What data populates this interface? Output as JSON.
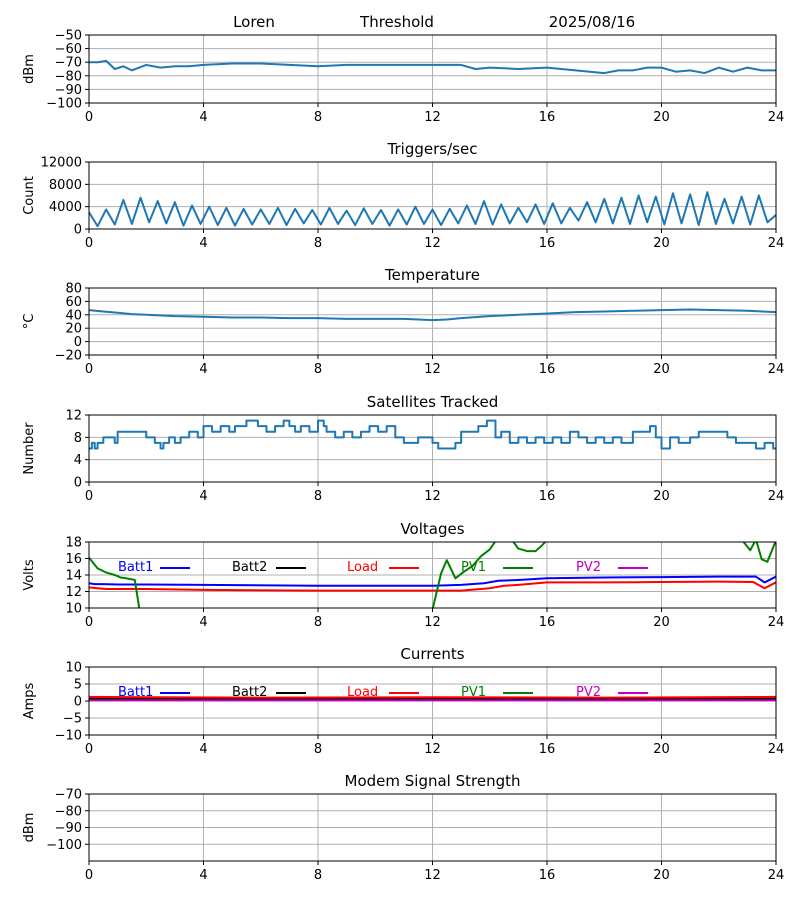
{
  "header": {
    "station": "Loren",
    "mode": "Threshold",
    "date": "2025/08/16"
  },
  "colors": {
    "series_default": "#1f77b4",
    "grid": "#b0b0b0",
    "batt1": "#0000ff",
    "batt2": "#000000",
    "load": "#ff0000",
    "pv1": "#008000",
    "pv2": "#bf00bf"
  },
  "chart_data": [
    {
      "type": "line",
      "title": "",
      "ylabel": "dBm",
      "xlim": [
        0,
        24
      ],
      "xticks": [
        0,
        4,
        8,
        12,
        16,
        20,
        24
      ],
      "ylim": [
        -100,
        -50
      ],
      "yticks": [
        -100,
        -90,
        -80,
        -70,
        -60,
        -50
      ],
      "grid": true,
      "series": [
        {
          "color": "#1f77b4",
          "x": [
            0,
            0.3,
            0.6,
            0.9,
            1.2,
            1.5,
            2,
            2.5,
            3,
            3.5,
            4,
            5,
            6,
            7,
            8,
            9,
            10,
            11,
            12,
            13,
            13.5,
            14,
            15,
            16,
            17,
            18,
            18.5,
            19,
            19.5,
            20,
            20.5,
            21,
            21.5,
            22,
            22.5,
            23,
            23.5,
            24
          ],
          "y": [
            -70,
            -70,
            -69,
            -75,
            -73,
            -76,
            -72,
            -74,
            -73,
            -73,
            -72,
            -71,
            -71,
            -72,
            -73,
            -72,
            -72,
            -72,
            -72,
            -72,
            -75,
            -74,
            -75,
            -74,
            -76,
            -78,
            -76,
            -76,
            -74,
            -74,
            -77,
            -76,
            -78,
            -74,
            -77,
            -74,
            -76,
            -76
          ]
        }
      ]
    },
    {
      "type": "line",
      "title": "Triggers/sec",
      "ylabel": "Count",
      "xlim": [
        0,
        24
      ],
      "xticks": [
        0,
        4,
        8,
        12,
        16,
        20,
        24
      ],
      "ylim": [
        0,
        12000
      ],
      "yticks": [
        0,
        4000,
        8000,
        12000
      ],
      "grid": true,
      "series": [
        {
          "color": "#1f77b4",
          "x": [
            0,
            0.3,
            0.6,
            0.9,
            1.2,
            1.5,
            1.8,
            2.1,
            2.4,
            2.7,
            3,
            3.3,
            3.6,
            3.9,
            4.2,
            4.5,
            4.8,
            5.1,
            5.4,
            5.7,
            6,
            6.3,
            6.6,
            6.9,
            7.2,
            7.5,
            7.8,
            8.1,
            8.4,
            8.7,
            9,
            9.3,
            9.6,
            9.9,
            10.2,
            10.5,
            10.8,
            11.1,
            11.4,
            11.7,
            12,
            12.3,
            12.6,
            12.9,
            13.2,
            13.5,
            13.8,
            14.1,
            14.4,
            14.7,
            15,
            15.3,
            15.6,
            15.9,
            16.2,
            16.5,
            16.8,
            17.1,
            17.4,
            17.7,
            18,
            18.3,
            18.6,
            18.9,
            19.2,
            19.5,
            19.8,
            20.1,
            20.4,
            20.7,
            21,
            21.3,
            21.6,
            21.9,
            22.2,
            22.5,
            22.8,
            23.1,
            23.4,
            23.7,
            24
          ],
          "y": [
            3000,
            500,
            3500,
            800,
            5200,
            900,
            5600,
            1200,
            5000,
            1000,
            4800,
            600,
            4200,
            900,
            4000,
            700,
            3800,
            600,
            3600,
            800,
            3500,
            900,
            3800,
            700,
            3600,
            1000,
            3400,
            800,
            3800,
            900,
            3300,
            700,
            3700,
            900,
            3400,
            600,
            3500,
            800,
            4000,
            900,
            3500,
            700,
            3600,
            1000,
            4200,
            900,
            5000,
            800,
            4400,
            1000,
            3800,
            1200,
            4400,
            900,
            4600,
            1000,
            3800,
            1500,
            4800,
            1200,
            5400,
            1000,
            5600,
            900,
            6000,
            1200,
            5800,
            800,
            6400,
            1000,
            6200,
            700,
            6600,
            900,
            5400,
            1000,
            5800,
            800,
            6000,
            1200,
            2500
          ]
        }
      ]
    },
    {
      "type": "line",
      "title": "Temperature",
      "ylabel": "°C",
      "xlim": [
        0,
        24
      ],
      "xticks": [
        0,
        4,
        8,
        12,
        16,
        20,
        24
      ],
      "ylim": [
        -20,
        80
      ],
      "yticks": [
        -20,
        0,
        20,
        40,
        60,
        80
      ],
      "grid": true,
      "series": [
        {
          "color": "#1f77b4",
          "x": [
            0,
            0.5,
            1,
            1.5,
            2,
            3,
            4,
            5,
            6,
            7,
            8,
            9,
            10,
            11,
            12,
            12.5,
            13,
            14,
            15,
            16,
            17,
            18,
            19,
            20,
            21,
            22,
            23,
            24
          ],
          "y": [
            47,
            45,
            43,
            41,
            40,
            38,
            37,
            36,
            36,
            35,
            35,
            34,
            34,
            34,
            32,
            33,
            35,
            38,
            40,
            42,
            44,
            45,
            46,
            47,
            48,
            47,
            46,
            44
          ]
        }
      ]
    },
    {
      "type": "line",
      "title": "Satellites Tracked",
      "ylabel": "Number",
      "xlim": [
        0,
        24
      ],
      "xticks": [
        0,
        4,
        8,
        12,
        16,
        20,
        24
      ],
      "ylim": [
        0,
        12
      ],
      "yticks": [
        0,
        4,
        8,
        12
      ],
      "grid": true,
      "series": [
        {
          "color": "#1f77b4",
          "step": true,
          "x": [
            0,
            0.1,
            0.2,
            0.3,
            0.5,
            0.9,
            1,
            1.5,
            2,
            2.3,
            2.5,
            2.6,
            2.8,
            3,
            3.2,
            3.5,
            3.8,
            4,
            4.3,
            4.6,
            4.9,
            5.1,
            5.5,
            5.9,
            6.2,
            6.5,
            6.8,
            7,
            7.2,
            7.4,
            7.7,
            8,
            8.2,
            8.3,
            8.6,
            8.9,
            9.2,
            9.5,
            9.8,
            10.1,
            10.4,
            10.7,
            11,
            11.5,
            12,
            12.2,
            12.4,
            12.8,
            13,
            13.3,
            13.6,
            13.9,
            14.2,
            14.4,
            14.7,
            15,
            15.3,
            15.6,
            15.9,
            16.2,
            16.5,
            16.8,
            17.1,
            17.4,
            17.7,
            18,
            18.3,
            18.6,
            19,
            19.3,
            19.6,
            19.8,
            20,
            20.3,
            20.6,
            21,
            21.3,
            21.6,
            22,
            22.3,
            22.6,
            23,
            23.3,
            23.6,
            23.9,
            24
          ],
          "y": [
            6,
            7,
            6,
            7,
            8,
            7,
            9,
            9,
            8,
            7,
            6,
            7,
            8,
            7,
            8,
            9,
            8,
            10,
            9,
            10,
            9,
            10,
            11,
            10,
            9,
            10,
            11,
            10,
            9,
            10,
            9,
            11,
            10,
            9,
            8,
            9,
            8,
            9,
            10,
            9,
            10,
            8,
            7,
            8,
            7,
            6,
            6,
            7,
            9,
            9,
            10,
            11,
            8,
            9,
            7,
            8,
            7,
            8,
            7,
            8,
            7,
            9,
            8,
            7,
            8,
            7,
            8,
            7,
            9,
            9,
            10,
            8,
            6,
            8,
            7,
            8,
            9,
            9,
            9,
            8,
            7,
            7,
            6,
            7,
            6,
            6
          ]
        }
      ]
    },
    {
      "type": "line",
      "title": "Voltages",
      "ylabel": "Volts",
      "xlim": [
        0,
        24
      ],
      "xticks": [
        0,
        4,
        8,
        12,
        16,
        20,
        24
      ],
      "ylim": [
        10,
        18
      ],
      "yticks": [
        10,
        12,
        14,
        16,
        18
      ],
      "grid": true,
      "legend": "top",
      "series": [
        {
          "name": "Batt1",
          "color": "#0000ff",
          "x": [
            0,
            0.2,
            0.5,
            1,
            2,
            4,
            8,
            12,
            13,
            13.8,
            14.3,
            15,
            16,
            18,
            20,
            22,
            23.3,
            23.6,
            24
          ],
          "y": [
            13,
            12.9,
            12.9,
            12.85,
            12.85,
            12.8,
            12.7,
            12.7,
            12.8,
            13,
            13.3,
            13.4,
            13.6,
            13.7,
            13.75,
            13.8,
            13.8,
            13.1,
            13.8
          ]
        },
        {
          "name": "Batt2",
          "color": "#000000",
          "x": [],
          "y": []
        },
        {
          "name": "Load",
          "color": "#ff0000",
          "x": [
            0,
            0.3,
            0.6,
            1,
            2,
            4,
            8,
            12,
            13,
            14,
            14.5,
            15,
            16,
            18,
            20,
            22,
            23.2,
            23.6,
            24
          ],
          "y": [
            12.5,
            12.4,
            12.3,
            12.3,
            12.3,
            12.2,
            12.1,
            12.1,
            12.1,
            12.4,
            12.7,
            12.8,
            13.1,
            13.1,
            13.15,
            13.2,
            13.15,
            12.4,
            13.1
          ]
        },
        {
          "name": "PV1",
          "color": "#008000",
          "x": [
            0,
            0.3,
            0.6,
            0.9,
            1.1,
            1.3,
            1.6,
            1.8
          ],
          "y": [
            16.1,
            14.8,
            14.3,
            14,
            13.7,
            13.6,
            13.4,
            9
          ],
          "x2": [
            12,
            12.3,
            12.5,
            12.8,
            13.1,
            13.4,
            13.7,
            14,
            14.3,
            14.7,
            15,
            15.3,
            15.6,
            15.8,
            16.1
          ],
          "y2": [
            9.8,
            14.2,
            15.8,
            13.6,
            14.4,
            15.1,
            16.3,
            17.1,
            18.6,
            18.6,
            17.2,
            16.9,
            16.9,
            17.5,
            18.6
          ],
          "x3": [
            22.5,
            22.8,
            23.1,
            23.3,
            23.5,
            23.7,
            24
          ],
          "y3": [
            18.6,
            18.3,
            17,
            18.3,
            15.9,
            15.6,
            18.2
          ]
        },
        {
          "name": "PV2",
          "color": "#bf00bf",
          "x": [],
          "y": []
        }
      ]
    },
    {
      "type": "line",
      "title": "Currents",
      "ylabel": "Amps",
      "xlim": [
        0,
        24
      ],
      "xticks": [
        0,
        4,
        8,
        12,
        16,
        20,
        24
      ],
      "ylim": [
        -10,
        10
      ],
      "yticks": [
        -10,
        -5,
        0,
        5,
        10
      ],
      "grid": true,
      "legend": "top",
      "series": [
        {
          "name": "Batt1",
          "color": "#0000ff",
          "x": [
            0,
            24
          ],
          "y": [
            0.4,
            0.4
          ]
        },
        {
          "name": "Batt2",
          "color": "#000000",
          "x": [
            0,
            24
          ],
          "y": [
            0.7,
            0.7
          ]
        },
        {
          "name": "Load",
          "color": "#ff0000",
          "x": [
            0,
            6,
            12,
            18,
            24
          ],
          "y": [
            1.2,
            1.0,
            1.1,
            1.0,
            1.2
          ]
        },
        {
          "name": "PV1",
          "color": "#008000",
          "x": [],
          "y": []
        },
        {
          "name": "PV2",
          "color": "#bf00bf",
          "x": [
            0,
            24
          ],
          "y": [
            0.2,
            0.2
          ]
        }
      ]
    },
    {
      "type": "line",
      "title": "Modem Signal Strength",
      "ylabel": "dBm",
      "xlim": [
        0,
        24
      ],
      "xticks": [
        0,
        4,
        8,
        12,
        16,
        20,
        24
      ],
      "ylim": [
        -110,
        -70
      ],
      "yticks": [
        -100,
        -90,
        -80,
        -70
      ],
      "grid": true,
      "series": []
    }
  ]
}
